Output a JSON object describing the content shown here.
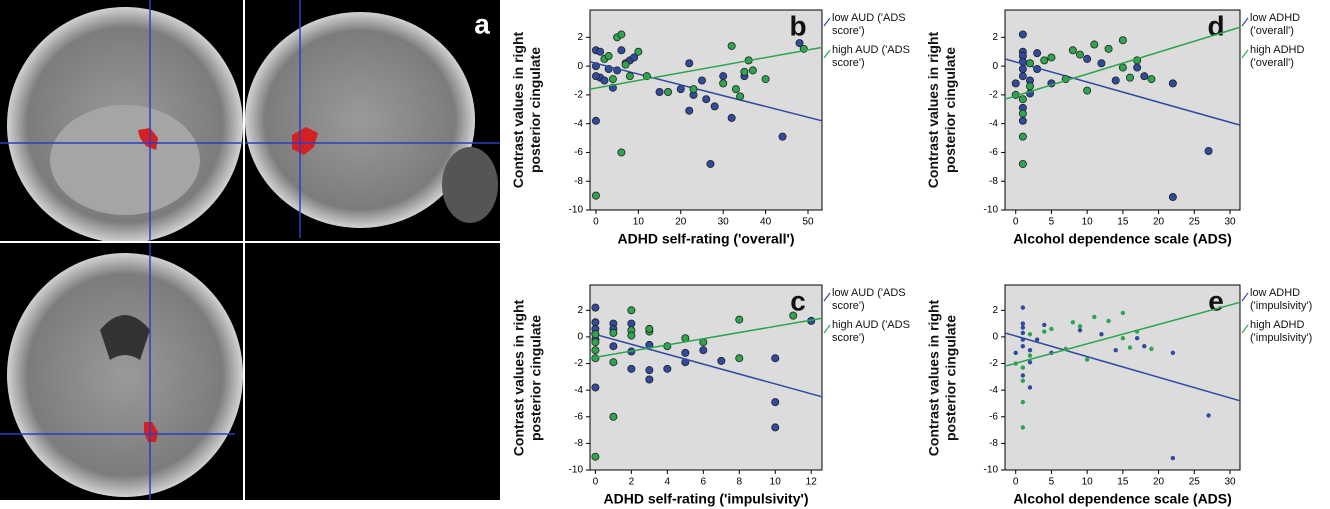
{
  "panel_a": {
    "label": "a"
  },
  "chart_data": [
    {
      "type": "scatter",
      "label": "b",
      "xlabel": "ADHD self-rating ('overall')",
      "ylabel": "Contrast values in right posterior cingulate",
      "xlim": [
        -1.4,
        53.3
      ],
      "ylim": [
        -10,
        3.9
      ],
      "xticks": [
        0,
        10,
        20,
        30,
        40,
        50
      ],
      "yticks": [
        -10,
        -8,
        -6,
        -4,
        -2,
        0,
        2
      ],
      "marker_edge": true,
      "series": [
        {
          "name": "low AUD ('ADS score')",
          "color": "#2f4a9e",
          "x": [
            0,
            1,
            0,
            1,
            2,
            3,
            5,
            6,
            7,
            8,
            9,
            0,
            0,
            4,
            15,
            20,
            22,
            22,
            23,
            25,
            26,
            27,
            28,
            30,
            32,
            35,
            44,
            48
          ],
          "y": [
            1.1,
            1,
            0,
            -0.8,
            -1,
            -0.2,
            -0.3,
            1.1,
            0.2,
            0.4,
            0.6,
            -3.8,
            -0.7,
            -1.5,
            -1.8,
            -1.6,
            0.2,
            -3.1,
            -2,
            -1,
            -2.3,
            -6.8,
            -2.8,
            -0.7,
            -3.6,
            -0.7,
            -4.9,
            1.6
          ],
          "fit": {
            "x": [
              -1.4,
              53.3
            ],
            "y": [
              0.3,
              -3.8
            ]
          }
        },
        {
          "name": "high AUD ('ADS score')",
          "color": "#2ea44f",
          "x": [
            0,
            2,
            3,
            4,
            5,
            6,
            6,
            7,
            8,
            10,
            12,
            17,
            23,
            30,
            32,
            33,
            34,
            35,
            36,
            37,
            40,
            49
          ],
          "y": [
            -9,
            0.5,
            0.7,
            -0.9,
            2,
            2.2,
            -6,
            0.1,
            -0.7,
            1,
            -0.7,
            -1.8,
            -1.6,
            -1.2,
            1.4,
            -1.6,
            -2.1,
            -0.4,
            0.4,
            -0.3,
            -0.9,
            1.2
          ],
          "fit": {
            "x": [
              -1.4,
              53.3
            ],
            "y": [
              -1.6,
              1.3
            ]
          }
        }
      ]
    },
    {
      "type": "scatter",
      "label": "c",
      "xlabel": "ADHD self-rating ('impulsivity')",
      "ylabel": "Contrast values in right posterior cingulate",
      "xlim": [
        -0.3,
        12.6
      ],
      "ylim": [
        -10,
        3.9
      ],
      "xticks": [
        0,
        2,
        4,
        6,
        8,
        10,
        12
      ],
      "yticks": [
        -10,
        -8,
        -6,
        -4,
        -2,
        0,
        2
      ],
      "marker_edge": true,
      "series": [
        {
          "name": "low AUD ('ADS score')",
          "color": "#2f4a9e",
          "x": [
            0,
            0,
            0,
            0,
            0,
            1,
            1,
            1,
            2,
            2,
            2,
            3,
            3,
            3,
            4,
            5,
            5,
            6,
            7,
            10,
            10,
            10,
            12
          ],
          "y": [
            2.2,
            1.1,
            0.6,
            -0.2,
            -3.8,
            1,
            0.6,
            -0.7,
            1,
            -1.1,
            -2.4,
            -2.5,
            -3.2,
            -0.6,
            -2.4,
            -1.2,
            -1.9,
            -1,
            -1.8,
            -4.9,
            -6.8,
            -1.6,
            1.2
          ],
          "fit": {
            "x": [
              -0.3,
              12.6
            ],
            "y": [
              0.3,
              -4.5
            ]
          }
        },
        {
          "name": "high AUD ('ADS score')",
          "color": "#2ea44f",
          "x": [
            0,
            0,
            0,
            0,
            0,
            1,
            1,
            1,
            2,
            2,
            2,
            3,
            3,
            4,
            5,
            6,
            8,
            8,
            11
          ],
          "y": [
            -9,
            -0.4,
            -1,
            -1.6,
            0.2,
            -6,
            0.3,
            -1.9,
            2,
            0.5,
            0.1,
            0.4,
            0.6,
            -0.7,
            -0.1,
            -0.4,
            1.3,
            -1.6,
            1.6
          ],
          "fit": {
            "x": [
              -0.3,
              12.6
            ],
            "y": [
              -1.6,
              1.4
            ]
          }
        }
      ]
    },
    {
      "type": "scatter",
      "label": "d",
      "xlabel": "Alcohol dependence scale (ADS)",
      "ylabel": "Contrast values in right posterior cingulate",
      "xlim": [
        -1.5,
        31.4
      ],
      "ylim": [
        -10,
        3.9
      ],
      "xticks": [
        0,
        5,
        10,
        15,
        20,
        25,
        30
      ],
      "yticks": [
        -10,
        -8,
        -6,
        -4,
        -2,
        0,
        2
      ],
      "marker_edge": true,
      "series": [
        {
          "name": "low ADHD ('overall')",
          "color": "#2f4a9e",
          "x": [
            1,
            1,
            1,
            1,
            1,
            1,
            0,
            2,
            2,
            1,
            1,
            3,
            3,
            5,
            10,
            12,
            14,
            17,
            18,
            22,
            22,
            27
          ],
          "y": [
            2.2,
            1,
            0.7,
            0.3,
            -0.2,
            -0.7,
            -1.2,
            -1,
            -1.9,
            -2.9,
            -3.8,
            -0.2,
            0.9,
            -1.2,
            0.5,
            0.2,
            -1,
            -0.1,
            -0.7,
            -1.2,
            -9.1,
            -5.9
          ],
          "fit": {
            "x": [
              -1.5,
              31.4
            ],
            "y": [
              0.5,
              -4.1
            ]
          }
        },
        {
          "name": "high ADHD ('overall')",
          "color": "#2ea44f",
          "x": [
            1,
            1,
            1,
            1,
            0,
            2,
            2,
            4,
            5,
            7,
            8,
            9,
            10,
            11,
            13,
            15,
            15,
            16,
            17,
            19
          ],
          "y": [
            -6.8,
            -4.9,
            -3.3,
            -2.3,
            -2,
            -1.4,
            0.2,
            0.4,
            0.6,
            -0.9,
            1.1,
            0.8,
            -1.7,
            1.5,
            1.2,
            1.8,
            -0.1,
            -0.8,
            0.4,
            -0.9
          ],
          "fit": {
            "x": [
              -1.5,
              31.4
            ],
            "y": [
              -2.3,
              2.7
            ]
          }
        }
      ]
    },
    {
      "type": "scatter",
      "label": "e",
      "xlabel": "Alcohol dependence scale (ADS)",
      "ylabel": "Contrast values in right posterior cingulate",
      "xlim": [
        -1.5,
        31.4
      ],
      "ylim": [
        -10,
        3.9
      ],
      "xticks": [
        0,
        5,
        10,
        15,
        20,
        25,
        30
      ],
      "yticks": [
        -10,
        -8,
        -6,
        -4,
        -2,
        0,
        2
      ],
      "marker_edge": false,
      "series": [
        {
          "name": "low ADHD ('impulsivity')",
          "color": "#2f4a9e",
          "x": [
            1,
            1,
            1,
            1,
            1,
            1,
            0,
            2,
            2,
            1,
            2,
            3,
            4,
            5,
            9,
            12,
            14,
            17,
            18,
            22,
            22,
            27
          ],
          "y": [
            2.2,
            1,
            0.7,
            0.3,
            -0.2,
            -0.7,
            -1.2,
            -1,
            -1.9,
            -2.9,
            -3.8,
            -0.2,
            0.9,
            -1.2,
            0.5,
            0.2,
            -1,
            -0.1,
            -0.7,
            -1.2,
            -9.1,
            -5.9
          ],
          "fit": {
            "x": [
              -1.5,
              31.4
            ],
            "y": [
              0.3,
              -4.8
            ]
          }
        },
        {
          "name": "high ADHD ('impulsivity')",
          "color": "#2ea44f",
          "x": [
            1,
            1,
            1,
            1,
            0,
            2,
            2,
            4,
            5,
            7,
            8,
            9,
            10,
            11,
            13,
            15,
            15,
            16,
            17,
            19
          ],
          "y": [
            -6.8,
            -4.9,
            -3.3,
            -2.3,
            -2,
            -1.4,
            0.2,
            0.4,
            0.6,
            -0.9,
            1.1,
            0.8,
            -1.7,
            1.5,
            1.2,
            1.8,
            -0.1,
            -0.8,
            0.4,
            -0.9
          ],
          "fit": {
            "x": [
              -1.5,
              31.4
            ],
            "y": [
              -2.2,
              2.6
            ]
          }
        }
      ]
    }
  ]
}
